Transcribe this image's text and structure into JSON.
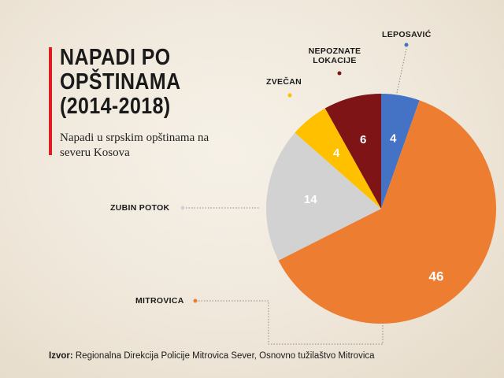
{
  "header": {
    "title_lines": [
      "NAPADI PO",
      "OPŠTINAMA",
      "(2014-2018)"
    ],
    "subtitle_lines": [
      "Napadi u srpskim opštinama na",
      "severu Kosova"
    ]
  },
  "footer": {
    "source_label": "Izvor:",
    "source_text": "Regionalna Direkcija Policije Mitrovica Sever, Osnovno tužilaštvo Mitrovica"
  },
  "chart_data": {
    "type": "pie",
    "title": "NAPADI PO OPŠTINAMA (2014-2018)",
    "subtitle": "Napadi u srpskim opštinama na severu Kosova",
    "slices": [
      {
        "label": "LEPOSAVIĆ",
        "value": 4,
        "color": "#4472c4"
      },
      {
        "label": "MITROVICA",
        "value": 46,
        "color": "#ed7d31"
      },
      {
        "label": "ZUBIN POTOK",
        "value": 14,
        "color": "#d2d2d2"
      },
      {
        "label": "ZVEČAN",
        "value": 4,
        "color": "#ffc000"
      },
      {
        "label": "NEPOZNATE LOKACIJE",
        "value": 6,
        "color": "#7f1416"
      }
    ],
    "label_lines": {
      "LEPOSAVIĆ": [
        "LEPOSAVIĆ"
      ],
      "MITROVICA": [
        "MITROVICA"
      ],
      "ZUBIN POTOK": [
        "ZUBIN POTOK"
      ],
      "ZVEČAN": [
        "ZVEČAN"
      ],
      "NEPOZNATE LOKACIJE": [
        "NEPOZNATE",
        "LOKACIJE"
      ]
    },
    "start": "top",
    "direction": "clockwise"
  },
  "colors": {
    "accent": "#e11b22",
    "text": "#1a1a1a",
    "leader": "#8a8a8a"
  }
}
